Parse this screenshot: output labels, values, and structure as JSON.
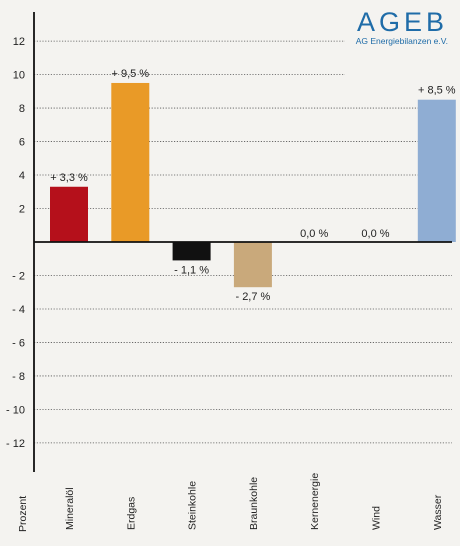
{
  "brand": {
    "name": "AGEB",
    "subtitle": "AG Energiebilanzen e.V."
  },
  "colors": {
    "background": "#f4f3f0",
    "brand": "#1f6ca8",
    "bars": [
      "#b5101b",
      "#e99a27",
      "#111111",
      "#c9a97b",
      "#888888",
      "#888888",
      "#8fadd3"
    ]
  },
  "chart_data": {
    "type": "bar",
    "ylabel": "Prozent",
    "ylim": [
      -13.5,
      13.5
    ],
    "yticks": [
      12,
      10,
      8,
      6,
      4,
      2,
      -2,
      -4,
      -6,
      -8,
      -10,
      -12
    ],
    "ytick_labels": [
      "12",
      "10",
      "8",
      "6",
      "4",
      "2",
      "- 2",
      "- 4",
      "- 6",
      "- 8",
      "- 10",
      "- 12"
    ],
    "grid": true,
    "categories": [
      "Mineralöl",
      "Erdgas",
      "Steinkohle",
      "Braunkohle",
      "Kernenergie",
      "Wind",
      "Wasser"
    ],
    "values": [
      3.3,
      9.5,
      -1.1,
      -2.7,
      0.0,
      0.0,
      8.5
    ],
    "labels": [
      "+ 3,3 %",
      "+ 9,5 %",
      "- 1,1 %",
      "- 2,7 %",
      "0,0 %",
      "0,0 %",
      "+ 8,5 %"
    ]
  }
}
